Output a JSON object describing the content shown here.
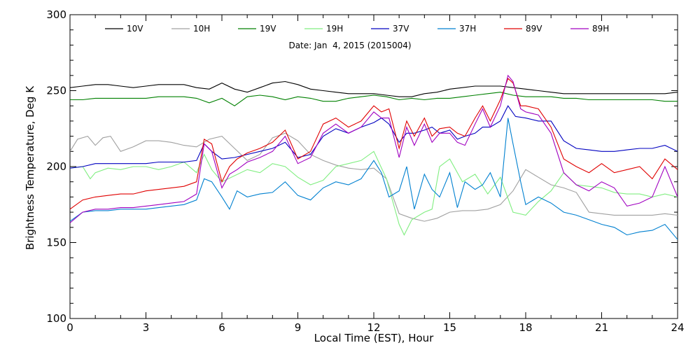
{
  "chart_data": {
    "type": "line",
    "subtitle": "Date: Jan  4, 2015 (2015004)",
    "xlabel": "Local Time (EST), Hour",
    "ylabel": "Brightness Temperature, Deg K",
    "xlim": [
      0,
      24
    ],
    "ylim": [
      100,
      300
    ],
    "xticks": [
      0,
      3,
      6,
      9,
      12,
      15,
      18,
      21,
      24
    ],
    "yticks": [
      100,
      150,
      200,
      250,
      300
    ],
    "grid": false,
    "legend_position": "top",
    "series": [
      {
        "name": "10V",
        "color": "#000000",
        "x": [
          0,
          0.5,
          1,
          1.5,
          2,
          2.5,
          3,
          3.5,
          4,
          4.5,
          5,
          5.5,
          6,
          6.5,
          7,
          7.5,
          8,
          8.5,
          9,
          9.5,
          10,
          10.5,
          11,
          11.5,
          12,
          12.5,
          13,
          13.5,
          14,
          14.5,
          15,
          15.5,
          16,
          16.5,
          17,
          17.5,
          18,
          18.5,
          19,
          19.5,
          20,
          20.5,
          21,
          21.5,
          22,
          22.5,
          23,
          23.5,
          24
        ],
        "y": [
          252,
          253,
          254,
          254,
          253,
          252,
          253,
          254,
          254,
          254,
          252,
          251,
          255,
          251,
          249,
          252,
          255,
          256,
          254,
          251,
          250,
          249,
          248,
          248,
          248,
          247,
          246,
          246,
          248,
          249,
          251,
          252,
          253,
          253,
          253,
          252,
          251,
          250,
          249,
          248,
          248,
          248,
          248,
          248,
          248,
          248,
          248,
          248,
          249
        ]
      },
      {
        "name": "10H",
        "color": "#a0a0a0",
        "x": [
          0,
          0.3,
          0.7,
          1,
          1.3,
          1.6,
          2,
          2.5,
          3,
          3.5,
          4,
          4.5,
          5,
          5.5,
          6,
          6.5,
          7,
          7.5,
          8,
          8.5,
          9,
          9.5,
          10,
          10.5,
          11,
          11.5,
          12,
          12.5,
          13,
          13.5,
          14,
          14.5,
          15,
          15.5,
          16,
          16.5,
          17,
          17.5,
          18,
          18.5,
          19,
          19.5,
          20,
          20.5,
          21,
          21.5,
          22,
          22.5,
          23,
          23.5,
          24
        ],
        "y": [
          210,
          218,
          220,
          214,
          219,
          220,
          210,
          213,
          217,
          217,
          216,
          214,
          213,
          218,
          220,
          212,
          204,
          208,
          219,
          222,
          217,
          208,
          204,
          201,
          199,
          198,
          199,
          192,
          169,
          166,
          164,
          166,
          170,
          171,
          171,
          172,
          175,
          184,
          198,
          193,
          188,
          186,
          183,
          170,
          169,
          168,
          168,
          168,
          168,
          169,
          168
        ]
      },
      {
        "name": "19V",
        "color": "#008000",
        "x": [
          0,
          0.5,
          1,
          1.5,
          2,
          2.5,
          3,
          3.5,
          4,
          4.5,
          5,
          5.5,
          6,
          6.5,
          7,
          7.5,
          8,
          8.5,
          9,
          9.5,
          10,
          10.5,
          11,
          11.5,
          12,
          12.5,
          13,
          13.5,
          14,
          14.5,
          15,
          15.5,
          16,
          16.5,
          17,
          17.5,
          18,
          18.5,
          19,
          19.5,
          20,
          20.5,
          21,
          21.5,
          22,
          22.5,
          23,
          23.5,
          24
        ],
        "y": [
          244,
          244,
          245,
          245,
          245,
          245,
          245,
          246,
          246,
          246,
          245,
          242,
          245,
          240,
          246,
          247,
          246,
          244,
          246,
          245,
          243,
          243,
          245,
          246,
          247,
          246,
          244,
          245,
          244,
          245,
          245,
          246,
          247,
          248,
          249,
          247,
          246,
          246,
          246,
          245,
          245,
          244,
          244,
          244,
          244,
          244,
          244,
          243,
          243
        ]
      },
      {
        "name": "19H",
        "color": "#80ee80",
        "x": [
          0,
          0.5,
          0.8,
          1,
          1.5,
          2,
          2.5,
          3,
          3.5,
          4,
          4.5,
          5,
          5.3,
          5.6,
          6,
          6.5,
          7,
          7.5,
          8,
          8.5,
          9,
          9.5,
          10,
          10.5,
          11,
          11.5,
          12,
          12.5,
          13,
          13.2,
          13.5,
          14,
          14.3,
          14.6,
          15,
          15.5,
          16,
          16.5,
          17,
          17.5,
          18,
          18.5,
          19,
          19.5,
          20,
          20.5,
          21,
          21.5,
          22,
          22.5,
          23,
          23.5,
          24
        ],
        "y": [
          199,
          200,
          192,
          196,
          199,
          198,
          200,
          200,
          198,
          200,
          203,
          196,
          208,
          198,
          190,
          194,
          198,
          196,
          202,
          200,
          193,
          188,
          191,
          200,
          202,
          204,
          210,
          192,
          162,
          155,
          165,
          170,
          172,
          200,
          205,
          190,
          195,
          182,
          193,
          170,
          168,
          177,
          184,
          196,
          188,
          187,
          186,
          183,
          182,
          182,
          180,
          182,
          180
        ]
      },
      {
        "name": "37V",
        "color": "#0000c0",
        "x": [
          0,
          0.5,
          1,
          1.5,
          2,
          2.5,
          3,
          3.5,
          4,
          4.5,
          5,
          5.3,
          5.6,
          6,
          6.5,
          7,
          7.5,
          8,
          8.5,
          9,
          9.5,
          10,
          10.5,
          11,
          11.5,
          12,
          12.3,
          12.6,
          13,
          13.3,
          13.6,
          14,
          14.3,
          14.6,
          15,
          15.3,
          15.6,
          16,
          16.3,
          16.6,
          17,
          17.3,
          17.6,
          18,
          18.5,
          19,
          19.5,
          20,
          20.5,
          21,
          21.5,
          22,
          22.5,
          23,
          23.5,
          24
        ],
        "y": [
          199,
          200,
          202,
          202,
          202,
          202,
          202,
          203,
          203,
          203,
          204,
          215,
          210,
          205,
          206,
          208,
          210,
          212,
          216,
          206,
          208,
          220,
          225,
          222,
          226,
          229,
          232,
          228,
          216,
          222,
          222,
          224,
          226,
          222,
          224,
          218,
          220,
          222,
          226,
          226,
          230,
          240,
          233,
          232,
          230,
          230,
          217,
          212,
          211,
          210,
          210,
          211,
          212,
          212,
          214,
          210
        ]
      },
      {
        "name": "37H",
        "color": "#0080d0",
        "x": [
          0,
          0.5,
          1,
          1.5,
          2,
          2.5,
          3,
          3.5,
          4,
          4.5,
          5,
          5.3,
          5.6,
          6,
          6.3,
          6.6,
          7,
          7.5,
          8,
          8.5,
          9,
          9.5,
          10,
          10.5,
          11,
          11.5,
          12,
          12.3,
          12.6,
          13,
          13.3,
          13.6,
          14,
          14.3,
          14.6,
          15,
          15.3,
          15.6,
          16,
          16.3,
          16.6,
          17,
          17.3,
          17.5,
          17.8,
          18,
          18.5,
          19,
          19.5,
          20,
          20.5,
          21,
          21.5,
          22,
          22.5,
          23,
          23.5,
          24
        ],
        "y": [
          164,
          170,
          171,
          171,
          172,
          172,
          172,
          173,
          174,
          175,
          178,
          192,
          190,
          180,
          172,
          184,
          180,
          182,
          183,
          190,
          181,
          178,
          186,
          190,
          188,
          192,
          204,
          196,
          180,
          184,
          200,
          172,
          195,
          185,
          180,
          196,
          173,
          190,
          185,
          188,
          196,
          180,
          232,
          215,
          190,
          175,
          180,
          176,
          170,
          168,
          165,
          162,
          160,
          155,
          157,
          158,
          162,
          152
        ]
      },
      {
        "name": "89V",
        "color": "#e00000",
        "x": [
          0,
          0.5,
          1,
          1.5,
          2,
          2.5,
          3,
          3.5,
          4,
          4.5,
          5,
          5.3,
          5.6,
          6,
          6.3,
          6.6,
          7,
          7.5,
          8,
          8.5,
          9,
          9.5,
          10,
          10.5,
          11,
          11.5,
          12,
          12.3,
          12.6,
          13,
          13.3,
          13.6,
          14,
          14.3,
          14.6,
          15,
          15.3,
          15.6,
          16,
          16.3,
          16.6,
          17,
          17.3,
          17.5,
          17.8,
          18,
          18.5,
          19,
          19.5,
          20,
          20.5,
          21,
          21.5,
          22,
          22.5,
          23,
          23.5,
          24
        ],
        "y": [
          172,
          178,
          180,
          181,
          182,
          182,
          184,
          185,
          186,
          187,
          190,
          218,
          215,
          190,
          200,
          205,
          209,
          212,
          216,
          224,
          205,
          210,
          228,
          232,
          226,
          230,
          240,
          236,
          238,
          212,
          230,
          220,
          232,
          220,
          225,
          226,
          222,
          220,
          232,
          240,
          230,
          244,
          258,
          255,
          240,
          240,
          238,
          226,
          205,
          200,
          196,
          202,
          196,
          198,
          200,
          192,
          205,
          198
        ]
      },
      {
        "name": "89H",
        "color": "#a000c0",
        "x": [
          0,
          0.5,
          1,
          1.5,
          2,
          2.5,
          3,
          3.5,
          4,
          4.5,
          5,
          5.3,
          5.6,
          6,
          6.3,
          6.6,
          7,
          7.5,
          8,
          8.5,
          9,
          9.5,
          10,
          10.5,
          11,
          11.5,
          12,
          12.3,
          12.6,
          13,
          13.3,
          13.6,
          14,
          14.3,
          14.6,
          15,
          15.3,
          15.6,
          16,
          16.3,
          16.6,
          17,
          17.3,
          17.5,
          17.8,
          18,
          18.5,
          19,
          19.5,
          20,
          20.5,
          21,
          21.5,
          22,
          22.5,
          23,
          23.5,
          24
        ],
        "y": [
          163,
          170,
          172,
          172,
          173,
          173,
          174,
          175,
          176,
          177,
          182,
          215,
          210,
          186,
          195,
          198,
          203,
          206,
          210,
          220,
          202,
          206,
          222,
          228,
          222,
          226,
          236,
          232,
          232,
          206,
          226,
          214,
          228,
          216,
          222,
          222,
          216,
          214,
          228,
          238,
          226,
          240,
          260,
          256,
          238,
          236,
          234,
          222,
          196,
          188,
          184,
          190,
          186,
          174,
          176,
          180,
          200,
          180
        ]
      }
    ]
  }
}
